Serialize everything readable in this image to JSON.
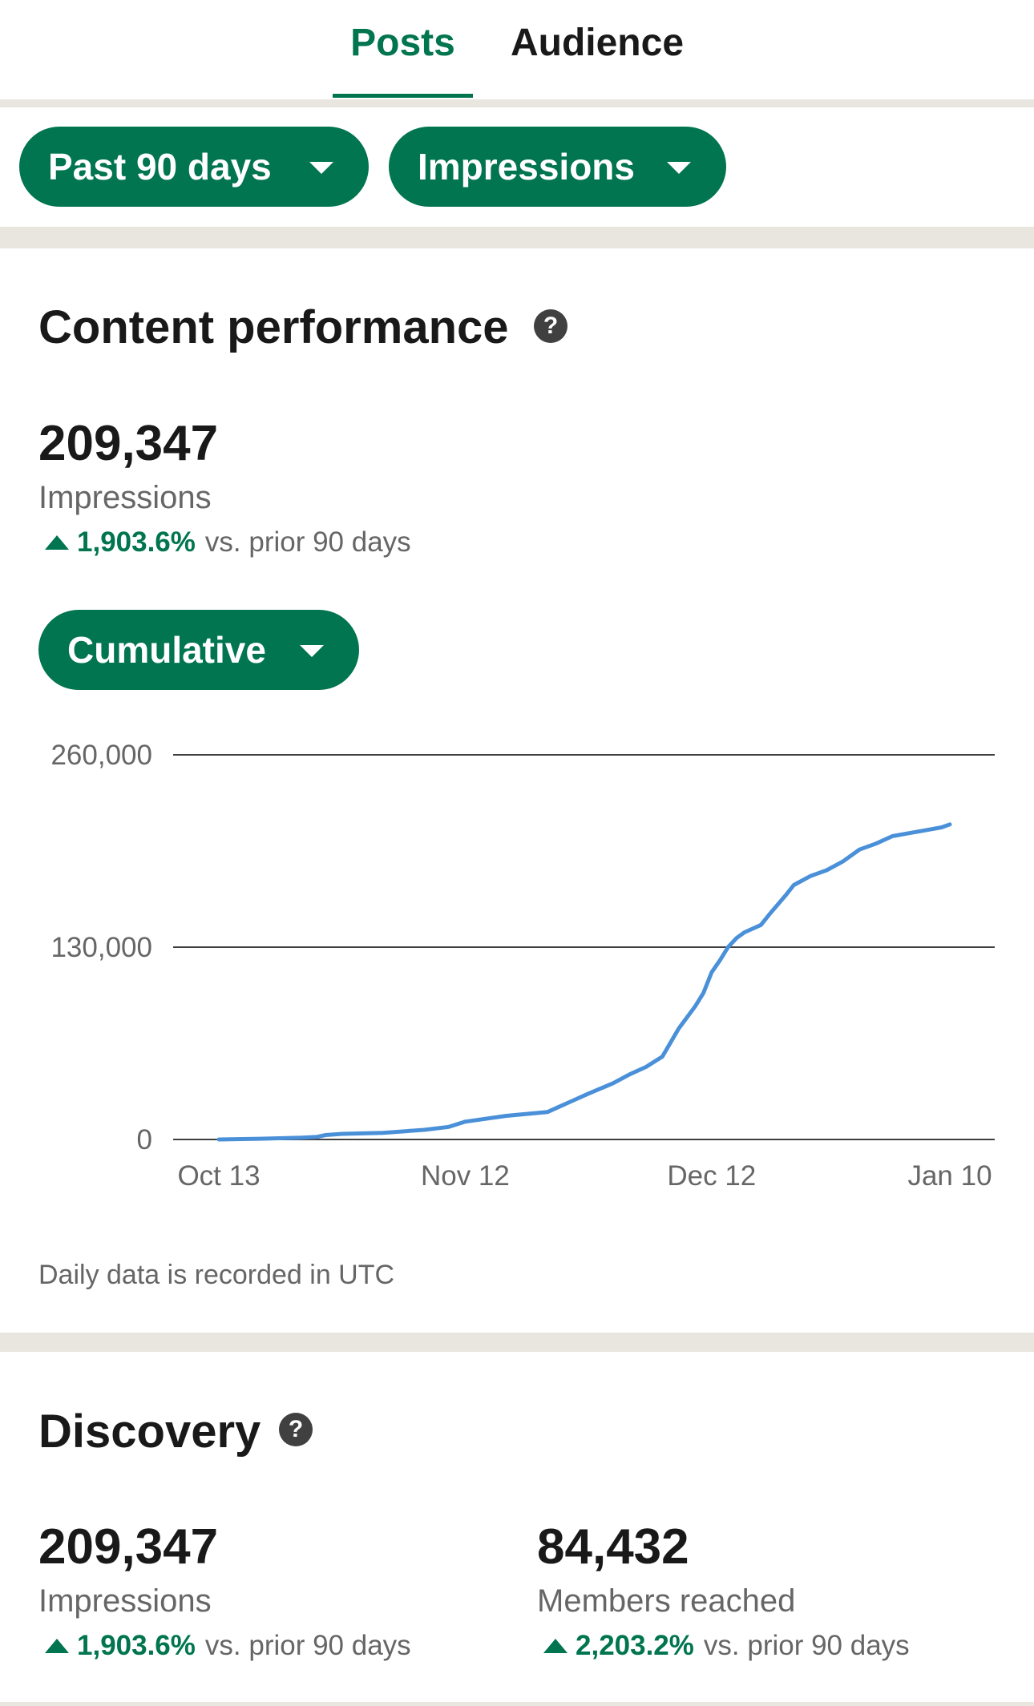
{
  "tabs": {
    "posts": "Posts",
    "audience": "Audience"
  },
  "filters": {
    "range_label": "Past 90 days",
    "metric_label": "Impressions"
  },
  "content_performance": {
    "title": "Content performance",
    "help_glyph": "?",
    "value": "209,347",
    "label": "Impressions",
    "change_pct": "1,903.6%",
    "change_text": "vs. prior 90 days",
    "mode_label": "Cumulative",
    "footnote": "Daily data is recorded in UTC"
  },
  "chart_data": {
    "type": "line",
    "y_ticks": [
      "260,000",
      "130,000",
      "0"
    ],
    "y_tick_values": [
      260000,
      130000,
      0
    ],
    "ylim": [
      0,
      260000
    ],
    "x_ticks": [
      "Oct 13",
      "Nov 12",
      "Dec 12",
      "Jan 10"
    ],
    "x_tick_days": [
      0,
      30,
      60,
      89
    ],
    "grid": true,
    "line_color": "#4a90d9",
    "series": [
      {
        "points": [
          [
            0,
            0
          ],
          [
            5,
            500
          ],
          [
            10,
            1200
          ],
          [
            12,
            1800
          ],
          [
            13,
            3000
          ],
          [
            15,
            3800
          ],
          [
            20,
            4500
          ],
          [
            25,
            6500
          ],
          [
            28,
            8500
          ],
          [
            30,
            12000
          ],
          [
            35,
            16000
          ],
          [
            40,
            18500
          ],
          [
            41,
            21000
          ],
          [
            43,
            26000
          ],
          [
            45,
            31000
          ],
          [
            48,
            38000
          ],
          [
            50,
            44000
          ],
          [
            52,
            49000
          ],
          [
            54,
            56000
          ],
          [
            56,
            75000
          ],
          [
            58,
            90000
          ],
          [
            59,
            99000
          ],
          [
            60,
            113000
          ],
          [
            61,
            121000
          ],
          [
            62,
            130000
          ],
          [
            63,
            136000
          ],
          [
            64,
            140000
          ],
          [
            66,
            145000
          ],
          [
            67,
            152000
          ],
          [
            69,
            165000
          ],
          [
            70,
            172000
          ],
          [
            72,
            178000
          ],
          [
            74,
            182000
          ],
          [
            76,
            188000
          ],
          [
            78,
            196000
          ],
          [
            80,
            200000
          ],
          [
            82,
            205000
          ],
          [
            84,
            207000
          ],
          [
            86,
            209000
          ],
          [
            88,
            211000
          ],
          [
            89,
            213000
          ]
        ]
      }
    ]
  },
  "discovery": {
    "title": "Discovery",
    "help_glyph": "?",
    "impressions_value": "209,347",
    "impressions_label": "Impressions",
    "impressions_change_pct": "1,903.6%",
    "impressions_change_text": "vs. prior 90 days",
    "members_value": "84,432",
    "members_label": "Members reached",
    "members_change_pct": "2,203.2%",
    "members_change_text": "vs. prior 90 days"
  },
  "colors": {
    "accent": "#01754f",
    "separator": "#e9e5df"
  }
}
